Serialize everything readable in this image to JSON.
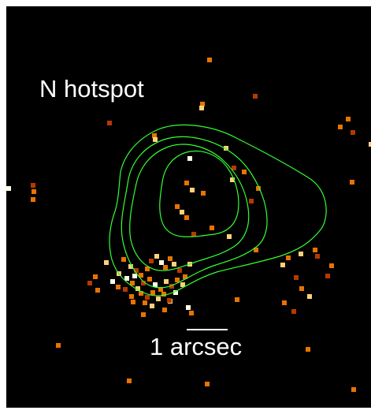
{
  "image": {
    "title": "N hotspot",
    "scale_label": "1 arcsec",
    "colors": {
      "background": "#000000",
      "contour": "#33ff33",
      "text": "#ffffff",
      "pixel_palette": [
        "#6b1200",
        "#b53a00",
        "#e97300",
        "#ffd07a",
        "#ffffe6"
      ]
    }
  }
}
